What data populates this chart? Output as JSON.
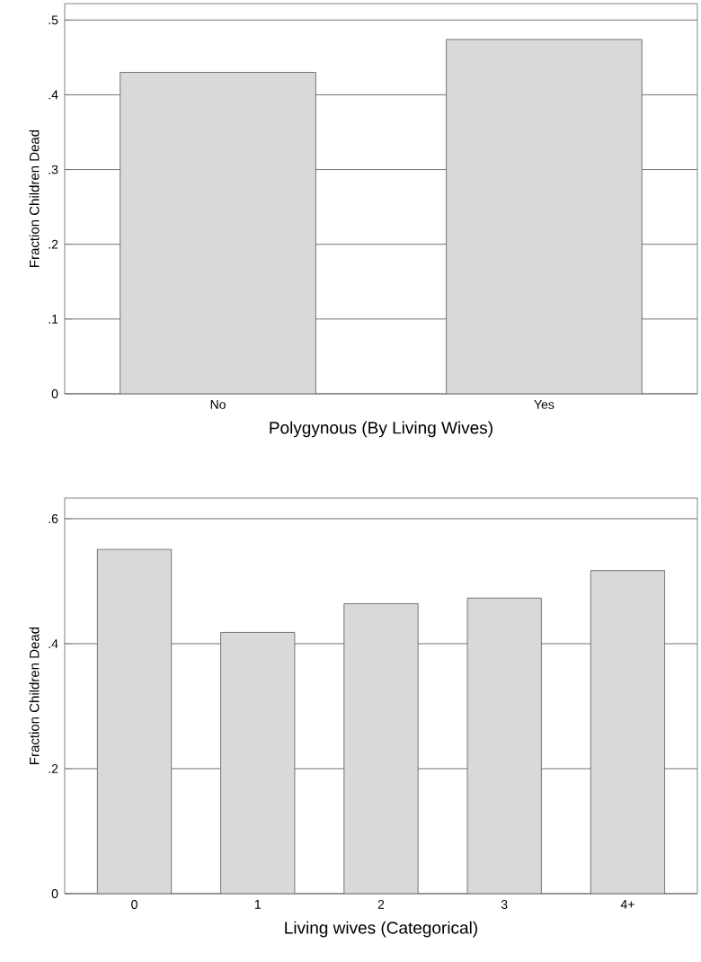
{
  "chart_data": [
    {
      "type": "bar",
      "xlabel": "Polygynous (By Living Wives)",
      "ylabel": "Fraction Children Dead",
      "categories": [
        "No",
        "Yes"
      ],
      "values": [
        0.43,
        0.474
      ],
      "color": "#d9d9d9",
      "ylim": [
        0,
        0.522
      ],
      "yticks": [
        0,
        {
          "value": 0.1,
          "label": ".1"
        },
        {
          "value": 0.2,
          "label": ".2"
        },
        {
          "value": 0.3,
          "label": ".3"
        },
        {
          "value": 0.4,
          "label": ".4"
        },
        {
          "value": 0.5,
          "label": ".5"
        }
      ],
      "grid": "y"
    },
    {
      "type": "bar",
      "xlabel": "Living wives (Categorical)",
      "ylabel": "Fraction Children Dead",
      "categories": [
        "0",
        "1",
        "2",
        "3",
        "4+"
      ],
      "values": [
        0.551,
        0.418,
        0.464,
        0.473,
        0.517
      ],
      "color": "#d9d9d9",
      "ylim": [
        0,
        0.633
      ],
      "yticks": [
        0,
        {
          "value": 0.2,
          "label": ".2"
        },
        {
          "value": 0.4,
          "label": ".4"
        },
        {
          "value": 0.6,
          "label": ".6"
        }
      ],
      "grid": "y"
    }
  ]
}
